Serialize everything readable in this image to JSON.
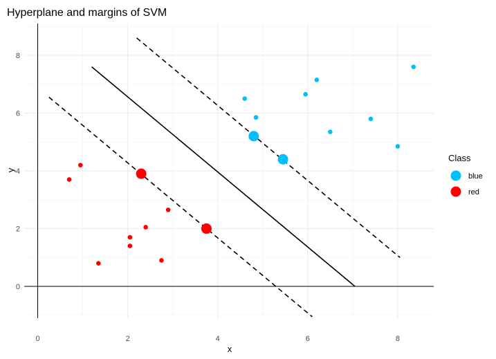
{
  "chart_data": {
    "type": "scatter",
    "title": "Hyperplane and margins of SVM",
    "xlabel": "x",
    "ylabel": "y",
    "xlim": [
      -0.3,
      8.8
    ],
    "ylim": [
      -1.1,
      9.1
    ],
    "x_ticks": [
      0,
      2,
      4,
      6,
      8
    ],
    "y_ticks": [
      0,
      2,
      4,
      6,
      8
    ],
    "grid": true,
    "legend": {
      "title": "Class",
      "position": "right",
      "entries": [
        {
          "label": "blue",
          "color": "#00bfff"
        },
        {
          "label": "red",
          "color": "#ff0000"
        }
      ]
    },
    "series": [
      {
        "name": "blue",
        "color": "#00bfff",
        "points": [
          [
            4.6,
            6.5
          ],
          [
            4.85,
            5.85
          ],
          [
            5.95,
            6.65
          ],
          [
            6.2,
            7.15
          ],
          [
            6.5,
            5.35
          ],
          [
            7.4,
            5.8
          ],
          [
            8.0,
            4.85
          ],
          [
            8.35,
            7.6
          ]
        ],
        "support_vectors": [
          [
            4.8,
            5.2
          ],
          [
            5.45,
            4.4
          ]
        ]
      },
      {
        "name": "red",
        "color": "#ff0000",
        "points": [
          [
            0.7,
            3.7
          ],
          [
            0.95,
            4.2
          ],
          [
            1.35,
            0.8
          ],
          [
            2.05,
            1.4
          ],
          [
            2.05,
            1.7
          ],
          [
            2.4,
            2.05
          ],
          [
            2.75,
            0.9
          ],
          [
            2.9,
            2.65
          ]
        ],
        "support_vectors": [
          [
            2.3,
            3.9
          ],
          [
            3.75,
            2.0
          ]
        ]
      }
    ],
    "reference_lines": {
      "x_zero": true,
      "y_zero": true
    },
    "lines": [
      {
        "name": "hyperplane",
        "style": "solid",
        "from": [
          1.2,
          7.6
        ],
        "to": [
          7.05,
          0.0
        ]
      },
      {
        "name": "upper-margin",
        "style": "dashed",
        "from": [
          2.2,
          8.6
        ],
        "to": [
          8.05,
          1.0
        ]
      },
      {
        "name": "lower-margin",
        "style": "dashed",
        "from": [
          0.25,
          6.55
        ],
        "to": [
          6.1,
          -1.05
        ]
      }
    ]
  }
}
